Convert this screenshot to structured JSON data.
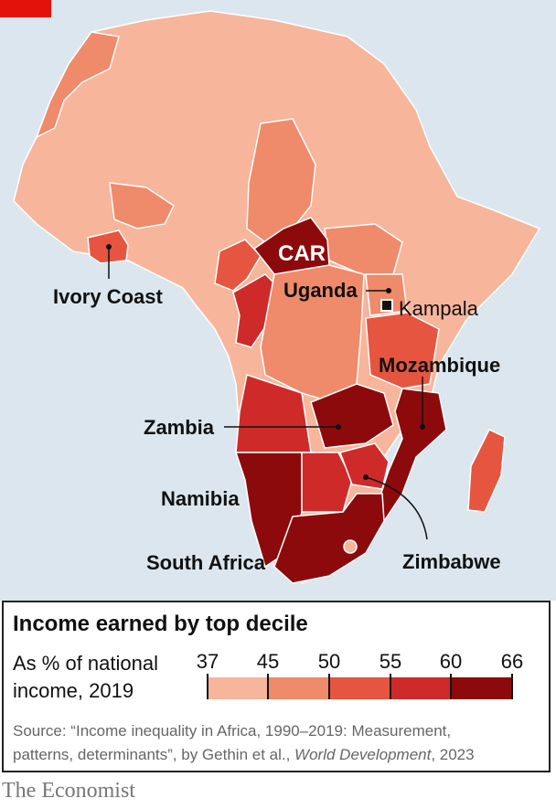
{
  "map": {
    "labels": {
      "ivory_coast": "Ivory Coast",
      "car": "CAR",
      "uganda": "Uganda",
      "kampala": "Kampala",
      "mozambique": "Mozambique",
      "zambia": "Zambia",
      "namibia": "Namibia",
      "south_africa": "South Africa",
      "zimbabwe": "Zimbabwe"
    },
    "colors": {
      "sea": "#dbe6ee",
      "band_37_45": "#f7b59b",
      "band_45_50": "#ef8a6a",
      "band_50_55": "#e6553f",
      "band_55_60": "#cf2a2a",
      "band_60_66": "#8c0a0c"
    }
  },
  "legend": {
    "title": "Income earned by top decile",
    "subtitle_line1": "As % of national",
    "subtitle_line2": "income, 2019",
    "ticks": [
      "37",
      "45",
      "50",
      "55",
      "60",
      "66"
    ],
    "source_prefix": "Source: “Income inequality in Africa, 1990–2019: Measurement,",
    "source_line2_a": "patterns, determinants”, by Gethin et al., ",
    "source_journal": "World Development",
    "source_line2_b": ", 2023"
  },
  "brand": {
    "logo": "The Economist",
    "accent": "#e3120b"
  }
}
